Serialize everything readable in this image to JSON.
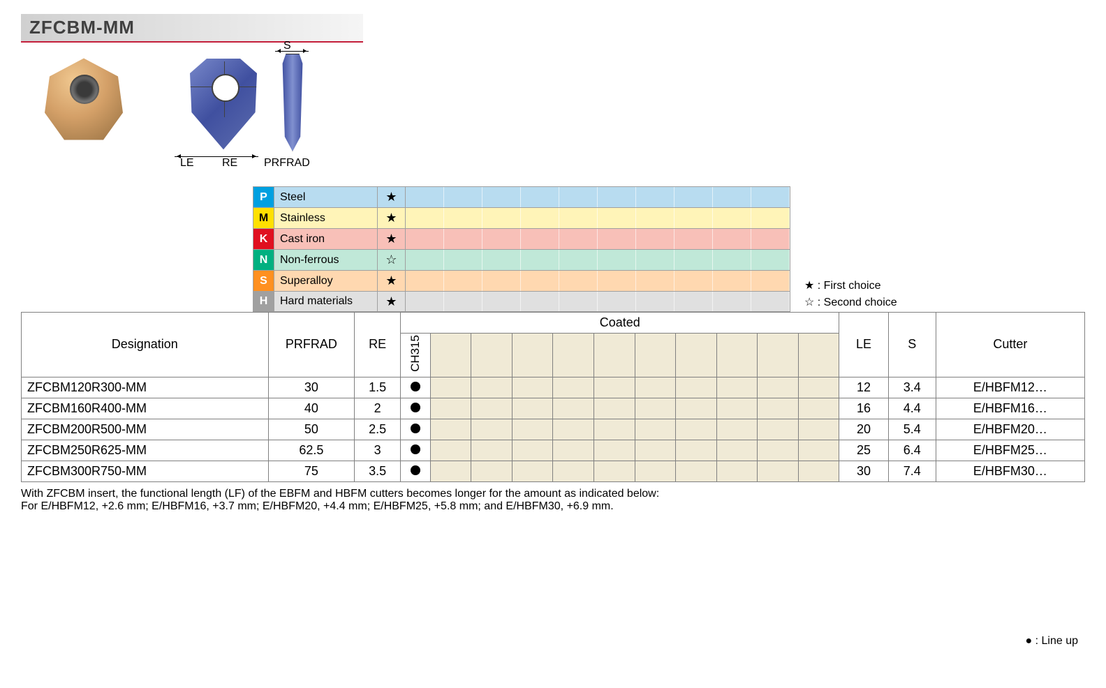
{
  "title": "ZFCBM-MM",
  "dimensions": {
    "le": "LE",
    "re": "RE",
    "s": "S",
    "prfrad": "PRFRAD"
  },
  "materials": [
    {
      "code": "P",
      "name": "Steel",
      "star": "★",
      "code_bg": "#00a0e0",
      "row_bg": "#b8dcf0",
      "code_fg": "#ffffff"
    },
    {
      "code": "M",
      "name": "Stainless",
      "star": "★",
      "code_bg": "#ffe000",
      "row_bg": "#fff4b8",
      "code_fg": "#000000"
    },
    {
      "code": "K",
      "name": "Cast iron",
      "star": "★",
      "code_bg": "#e01020",
      "row_bg": "#f8c0b8",
      "code_fg": "#ffffff"
    },
    {
      "code": "N",
      "name": "Non-ferrous",
      "star": "☆",
      "code_bg": "#00b080",
      "row_bg": "#c0e8d8",
      "code_fg": "#ffffff"
    },
    {
      "code": "S",
      "name": "Superalloy",
      "star": "★",
      "code_bg": "#ff9020",
      "row_bg": "#ffd8b0",
      "code_fg": "#ffffff"
    },
    {
      "code": "H",
      "name": "Hard materials",
      "star": "★",
      "code_bg": "#a0a0a0",
      "row_bg": "#e0e0e0",
      "code_fg": "#ffffff"
    }
  ],
  "legend": {
    "first": "★ : First choice",
    "second": "☆ : Second choice",
    "lineup": "● : Line up"
  },
  "headers": {
    "designation": "Designation",
    "prfrad": "PRFRAD",
    "re": "RE",
    "coated": "Coated",
    "grade": "CH315",
    "le": "LE",
    "s": "S",
    "cutter": "Cutter"
  },
  "blank_cols": 10,
  "rows": [
    {
      "designation": "ZFCBM120R300-MM",
      "prfrad": "30",
      "re": "1.5",
      "grade": true,
      "le": "12",
      "s": "3.4",
      "cutter": "E/HBFM12…"
    },
    {
      "designation": "ZFCBM160R400-MM",
      "prfrad": "40",
      "re": "2",
      "grade": true,
      "le": "16",
      "s": "4.4",
      "cutter": "E/HBFM16…"
    },
    {
      "designation": "ZFCBM200R500-MM",
      "prfrad": "50",
      "re": "2.5",
      "grade": true,
      "le": "20",
      "s": "5.4",
      "cutter": "E/HBFM20…"
    },
    {
      "designation": "ZFCBM250R625-MM",
      "prfrad": "62.5",
      "re": "3",
      "grade": true,
      "le": "25",
      "s": "6.4",
      "cutter": "E/HBFM25…"
    },
    {
      "designation": "ZFCBM300R750-MM",
      "prfrad": "75",
      "re": "3.5",
      "grade": true,
      "le": "30",
      "s": "7.4",
      "cutter": "E/HBFM30…"
    }
  ],
  "footnote": {
    "line1": "With ZFCBM insert, the functional length (LF) of the EBFM and HBFM cutters becomes longer for the amount as indicated below:",
    "line2": "For E/HBFM12, +2.6 mm; E/HBFM16, +3.7 mm; E/HBFM20, +4.4 mm; E/HBFM25, +5.8 mm; and E/HBFM30, +6.9 mm."
  },
  "colors": {
    "title_underline": "#c41e3a",
    "blank_fill": "#f0ead6",
    "border": "#808080"
  }
}
